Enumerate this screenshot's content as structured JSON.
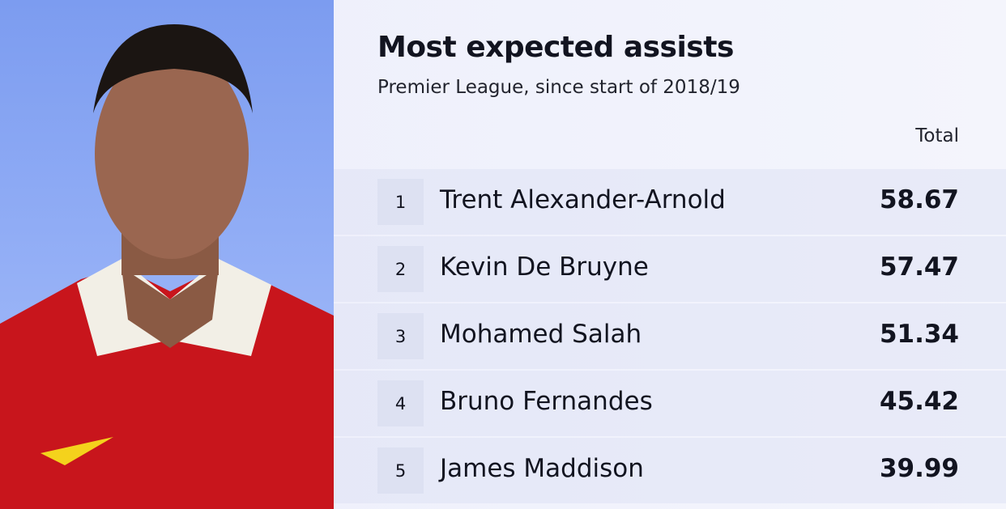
{
  "header": {
    "title": "Most expected assists",
    "subtitle": "Premier League, since start of 2018/19"
  },
  "table": {
    "column_header": "Total",
    "rows": [
      {
        "rank": 1,
        "name": "Trent Alexander-Arnold",
        "value": 58.67
      },
      {
        "rank": 2,
        "name": "Kevin De Bruyne",
        "value": 57.47
      },
      {
        "rank": 3,
        "name": "Mohamed Salah",
        "value": 51.34
      },
      {
        "rank": 4,
        "name": "Bruno Fernandes",
        "value": 45.42
      },
      {
        "rank": 5,
        "name": "James Maddison",
        "value": 39.99
      }
    ]
  }
}
